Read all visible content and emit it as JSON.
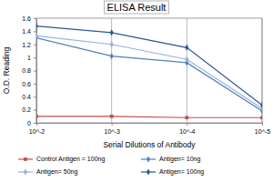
{
  "chart_data": {
    "type": "line",
    "title": "ELISA Result",
    "x_label": "Serial Dilutions of Antibody",
    "y_label": "O.D. Reading",
    "categories": [
      "10^-2",
      "10^-3",
      "10^-4",
      "10^-5"
    ],
    "series": [
      {
        "name": "Control Antigen = 100ng",
        "color": "#c0504d",
        "marker": "square",
        "values": [
          0.1,
          0.1,
          0.08,
          0.08
        ]
      },
      {
        "name": "Antigen= 10ng",
        "color": "#4f81bd",
        "marker": "diamond",
        "values": [
          1.3,
          1.02,
          0.92,
          0.18
        ]
      },
      {
        "name": "Antigen= 50ng",
        "color": "#9aaee0",
        "marker": "diamond",
        "values": [
          1.33,
          1.2,
          0.97,
          0.22
        ]
      },
      {
        "name": "Antigen= 100ng",
        "color": "#2f5597",
        "marker": "diamond",
        "values": [
          1.48,
          1.38,
          1.15,
          0.27
        ]
      }
    ],
    "ylim": [
      0,
      1.6
    ],
    "yticks": [
      0,
      0.2,
      0.4,
      0.6,
      0.8,
      1,
      1.2,
      1.4,
      1.6
    ],
    "grid": true,
    "legend": "bottom"
  }
}
